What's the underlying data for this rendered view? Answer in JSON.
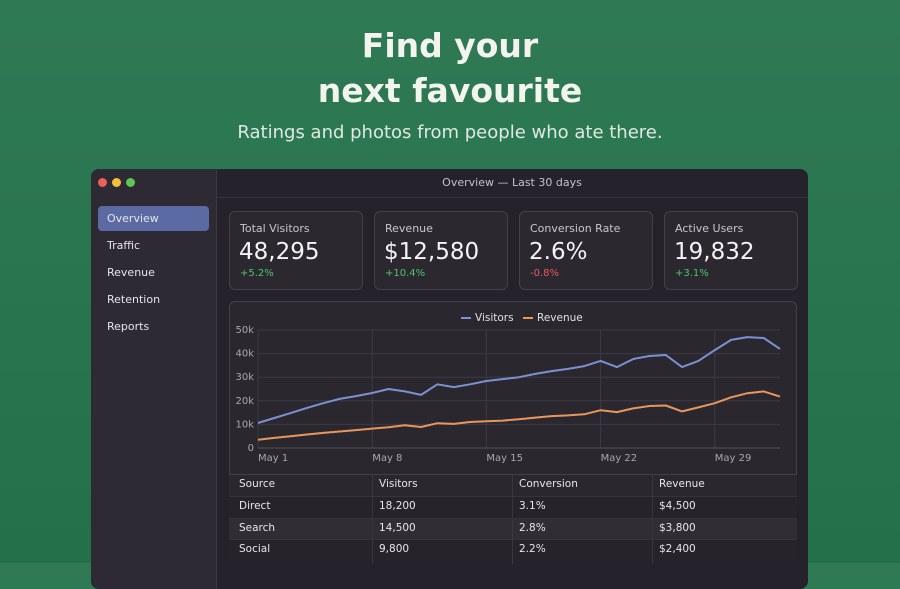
{
  "header": {
    "title_lines": [
      "Find your",
      "next favourite"
    ],
    "subtitle": "Ratings and photos from people who ate there."
  },
  "window": {
    "title": "Overview — Last 30 days"
  },
  "sidebar": {
    "items": [
      "Overview",
      "Traffic",
      "Revenue",
      "Retention",
      "Reports"
    ],
    "active": 0
  },
  "kpis": [
    {
      "label": "Total Visitors",
      "value": "48,295",
      "delta": "+5.2%",
      "delta_color": "#4fc46e"
    },
    {
      "label": "Revenue",
      "value": "$12,580",
      "delta": "+10.4%",
      "delta_color": "#4fc46e"
    },
    {
      "label": "Conversion Rate",
      "value": "2.6%",
      "delta": "-0.8%",
      "delta_color": "#e8575c"
    },
    {
      "label": "Active Users",
      "value": "19,832",
      "delta": "+3.1%",
      "delta_color": "#4fc46e"
    }
  ],
  "chart_data": {
    "type": "line",
    "x": [
      1,
      2,
      3,
      4,
      5,
      6,
      7,
      8,
      9,
      10,
      11,
      12,
      13,
      14,
      15,
      16,
      17,
      18,
      19,
      20,
      21,
      22,
      23,
      24,
      25,
      26,
      27,
      28,
      29,
      30,
      31,
      32,
      33
    ],
    "xlim": [
      1,
      33
    ],
    "xticks": [
      {
        "value": 1,
        "label": "May 1"
      },
      {
        "value": 8,
        "label": "May 8"
      },
      {
        "value": 15,
        "label": "May 15"
      },
      {
        "value": 22,
        "label": "May 22"
      },
      {
        "value": 29,
        "label": "May 29"
      }
    ],
    "ylim": [
      0,
      50000
    ],
    "yticks": [
      0,
      {
        "value": 10000,
        "label": "10k"
      },
      {
        "value": 20000,
        "label": "20k"
      },
      {
        "value": 30000,
        "label": "30k"
      },
      {
        "value": 40000,
        "label": "40k"
      },
      {
        "value": 50000,
        "label": "50k"
      }
    ],
    "grid": true,
    "legend": "top",
    "series": [
      {
        "name": "Visitors",
        "color": "#7d90d2",
        "values": [
          10600,
          12700,
          14800,
          17000,
          19000,
          20800,
          22000,
          23300,
          25000,
          24000,
          22500,
          27000,
          25800,
          27000,
          28400,
          29200,
          30000,
          31400,
          32600,
          33500,
          34700,
          36900,
          34300,
          37700,
          39000,
          39400,
          34300,
          36900,
          41500,
          45800,
          47000,
          46600,
          42000
        ]
      },
      {
        "name": "Revenue",
        "color": "#e8975c",
        "values": [
          3500,
          4300,
          5000,
          5700,
          6400,
          7000,
          7600,
          8200,
          8800,
          9600,
          8900,
          10500,
          10200,
          11000,
          11300,
          11600,
          12200,
          12900,
          13500,
          13800,
          14300,
          16000,
          15200,
          16800,
          17800,
          18000,
          15500,
          17200,
          19000,
          21500,
          23200,
          24000,
          21800
        ]
      }
    ]
  },
  "table": {
    "columns": [
      "Source",
      "Visitors",
      "Conversion",
      "Revenue"
    ],
    "rows": [
      [
        "Direct",
        "18,200",
        "3.1%",
        "$4,500"
      ],
      [
        "Search",
        "14,500",
        "2.8%",
        "$3,800"
      ],
      [
        "Social",
        "9,800",
        "2.2%",
        "$2,400"
      ]
    ]
  }
}
